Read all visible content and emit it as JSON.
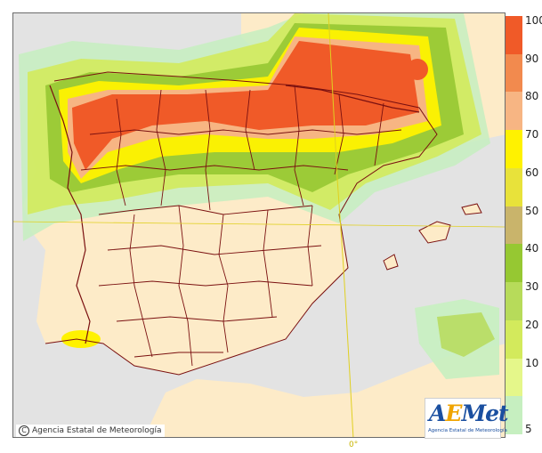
{
  "legend": {
    "labels": [
      "100",
      "90",
      "80",
      "70",
      "60",
      "50",
      "40",
      "30",
      "20",
      "10",
      "5"
    ],
    "colors": [
      "#f05a28",
      "#f28a4e",
      "#f7b583",
      "#fff200",
      "#e8e23a",
      "#c9b46b",
      "#96c832",
      "#b7db5a",
      "#d3ea5c",
      "#e5f78a",
      "#c6efc0"
    ]
  },
  "credit": {
    "symbol": "C",
    "text": "Agencia Estatal de Meteorología"
  },
  "logo": {
    "brand_a": "A",
    "brand_e": "E",
    "brand_rest": "Met",
    "sub": "Agencia Estatal de Meteorología"
  },
  "map": {
    "meridian_label": "0°",
    "land_color": "#fdebc8",
    "sea_color": "#e3e3e3",
    "border_color": "#7a1010"
  }
}
